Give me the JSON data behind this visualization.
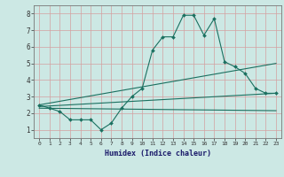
{
  "xlabel": "Humidex (Indice chaleur)",
  "bg_color": "#cce8e4",
  "grid_color": "#d4a0a0",
  "line_color": "#1a7060",
  "xlim_min": -0.5,
  "xlim_max": 23.5,
  "ylim_min": 0.5,
  "ylim_max": 8.5,
  "xticks": [
    0,
    1,
    2,
    3,
    4,
    5,
    6,
    7,
    8,
    9,
    10,
    11,
    12,
    13,
    14,
    15,
    16,
    17,
    18,
    19,
    20,
    21,
    22,
    23
  ],
  "yticks": [
    1,
    2,
    3,
    4,
    5,
    6,
    7,
    8
  ],
  "series1_x": [
    0,
    1,
    2,
    3,
    4,
    5,
    6,
    7,
    8,
    9,
    10,
    11,
    12,
    13,
    14,
    15,
    16,
    17,
    18,
    19,
    20,
    21,
    22,
    23
  ],
  "series1_y": [
    2.5,
    2.3,
    2.1,
    1.6,
    1.6,
    1.6,
    1.0,
    1.4,
    2.3,
    3.0,
    3.5,
    5.8,
    6.6,
    6.6,
    7.9,
    7.9,
    6.7,
    7.7,
    5.1,
    4.8,
    4.4,
    3.5,
    3.2,
    3.2
  ],
  "series2_x": [
    0,
    23
  ],
  "series2_y": [
    2.5,
    5.0
  ],
  "series3_x": [
    0,
    23
  ],
  "series3_y": [
    2.4,
    3.2
  ],
  "series4_x": [
    0,
    23
  ],
  "series4_y": [
    2.3,
    2.15
  ]
}
